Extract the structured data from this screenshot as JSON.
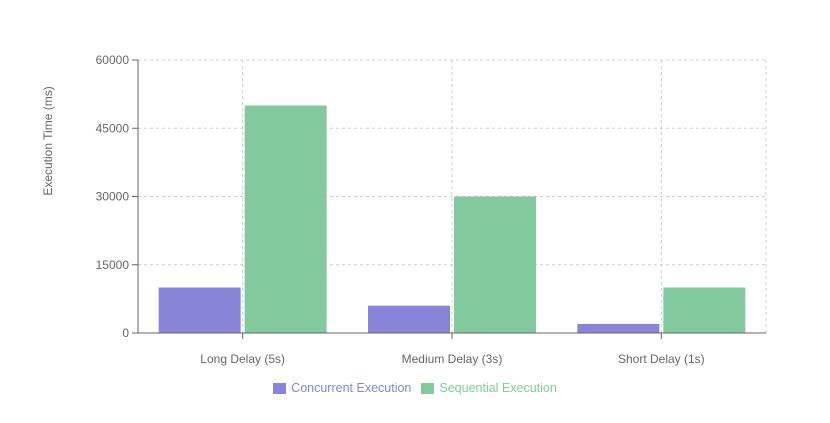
{
  "chart_data": {
    "type": "bar",
    "title": "",
    "xlabel": "",
    "ylabel": "Execution Time (ms)",
    "categories": [
      "Long Delay (5s)",
      "Medium Delay (3s)",
      "Short Delay (1s)"
    ],
    "series": [
      {
        "name": "Concurrent Execution",
        "color": "#8884d8",
        "values": [
          10000,
          6000,
          2000
        ]
      },
      {
        "name": "Sequential Execution",
        "color": "#82ca9d",
        "values": [
          50000,
          30000,
          10000
        ]
      }
    ],
    "ylim": [
      0,
      60000
    ],
    "yticks": [
      "0",
      "15000",
      "30000",
      "45000",
      "60000"
    ],
    "grid": true,
    "legend_position": "bottom"
  }
}
